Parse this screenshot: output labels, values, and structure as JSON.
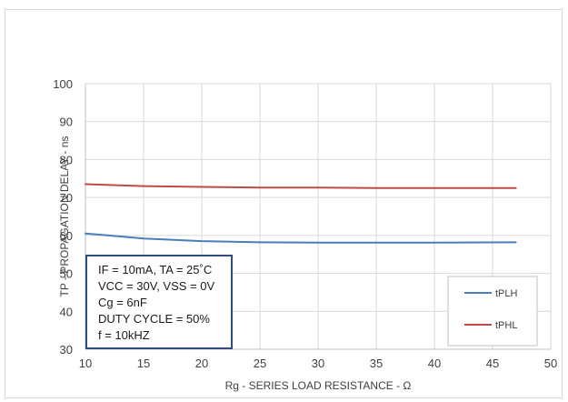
{
  "chart_data": {
    "type": "line",
    "title": "",
    "xlabel": "Rg - SERIES LOAD RESISTANCE - Ω",
    "ylabel": "TP - PROPAGATION DELAY - ns",
    "xlim": [
      10,
      50
    ],
    "ylim": [
      30,
      100
    ],
    "xticks": [
      "10",
      "15",
      "20",
      "25",
      "30",
      "35",
      "40",
      "45",
      "50"
    ],
    "yticks": [
      "30",
      "40",
      "50",
      "60",
      "70",
      "80",
      "90",
      "100"
    ],
    "grid": true,
    "legend_position": "bottom-right",
    "series": [
      {
        "name": "tPLH",
        "color": "#4a7ebb",
        "points": [
          [
            10,
            60.5
          ],
          [
            12,
            60.0
          ],
          [
            15,
            59.2
          ],
          [
            20,
            58.5
          ],
          [
            25,
            58.2
          ],
          [
            30,
            58.1
          ],
          [
            35,
            58.1
          ],
          [
            40,
            58.1
          ],
          [
            47,
            58.2
          ]
        ]
      },
      {
        "name": "tPHL",
        "color": "#be4b48",
        "points": [
          [
            10,
            73.5
          ],
          [
            15,
            73.0
          ],
          [
            20,
            72.8
          ],
          [
            25,
            72.6
          ],
          [
            30,
            72.6
          ],
          [
            35,
            72.5
          ],
          [
            40,
            72.5
          ],
          [
            47,
            72.5
          ]
        ]
      }
    ],
    "annotation": [
      "IF = 10mA, TA = 25˚C",
      "VCC = 30V, VSS = 0V",
      "Cg = 6nF",
      "DUTY CYCLE = 50%",
      "f = 10kHZ"
    ]
  }
}
